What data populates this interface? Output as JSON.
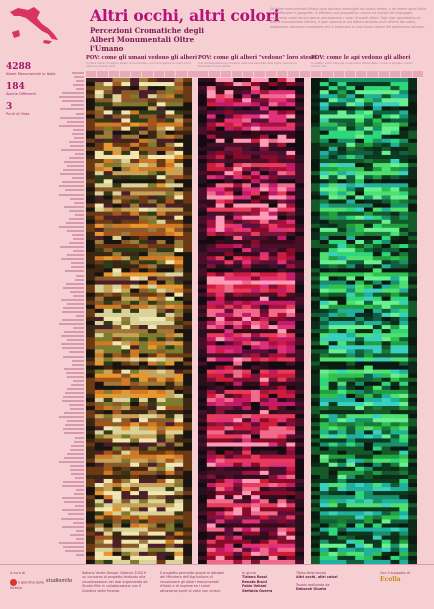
{
  "header": {
    "title": "Altri occhi, altri colori",
    "subtitle": "Percezioni Cromatiche degli Alberi Monumentali Oltre l'Umano",
    "intro": "Gli alberi monumentali d'Italia sono davvero meraviglie del nostro tempo, e da essere ignari della loro diffusione in geografia. Vi offriamo una prospettiva curiosa sul mondo del linguaggio, mostrando come alcune specie percepiscono i colori di questi alberi. Ogni riga rappresenta un albero monumentale italiano, e ogni colonna la sua lettura secondo occhi diversi dai nostri, restituendo variazioni cromatiche che si traducono in una nuova visione del patrimonio naturale."
  },
  "stats": [
    {
      "value": "4288",
      "label": "Alberi Monumentali in Italia"
    },
    {
      "value": "184",
      "label": "Specie Differenti"
    },
    {
      "value": "3",
      "label": "Punti di Vista"
    }
  ],
  "panels": [
    {
      "title": "POV: come gli umani vedono gli alberi",
      "desc": "Il colore medio di ciascun albero monumentale, così come appare ai nostri occhi, nelle sue diverse parti.",
      "accent": "#e07a1f"
    },
    {
      "title": "POV: come gli alberi \"vedono\" loro stessi",
      "desc": "Una reinterpretazione cromatica della luce assorbita dalle foglie, secondo la fotosintesi di ogni pianta.",
      "accent": "#d81f3a"
    },
    {
      "title": "POV: come le api vedono gli alberi",
      "desc": "Lo spettro visivo delle api comprende l'ultravioletto: i colori si spostano verso i verdi e i blu.",
      "accent": "#27b04a"
    }
  ],
  "footer": {
    "curated_label": "A cura di",
    "partner_1": "il giardino della foresta",
    "partner_2": "studiomilo",
    "project_text": "Italiano Verde Design: Dataviz 2024 è un concorso di progetto dedicato alla visualizzazione dei dati organizzato da Studio Milo in collaborazione con Il Giardino della Foresta.",
    "rules_text": "Il progetto permette grazie al dataset del Ministero dell'Agricoltura di visualizzare gli alberi monumentali d'Italia e di esplorarne i colori attraverso punti di vista non umani.",
    "team_label": "In giuria",
    "team": [
      "Tiziano Rossi",
      "Renato Bruni",
      "Fabio Vellani",
      "Stefania Guerra"
    ],
    "table_label": "Titolo della tavola",
    "table_title": "Altri occhi, altri colori",
    "author_label": "Tavola realizzata da",
    "author": "Deborah Giunta",
    "support_label": "Con il supporto di",
    "support_logo": "Ecolla"
  },
  "colors": {
    "background": "#f6cfd2",
    "title": "#b3127a",
    "human": "#e07a1f",
    "tree": "#d81f3a",
    "bee": "#27b04a"
  }
}
